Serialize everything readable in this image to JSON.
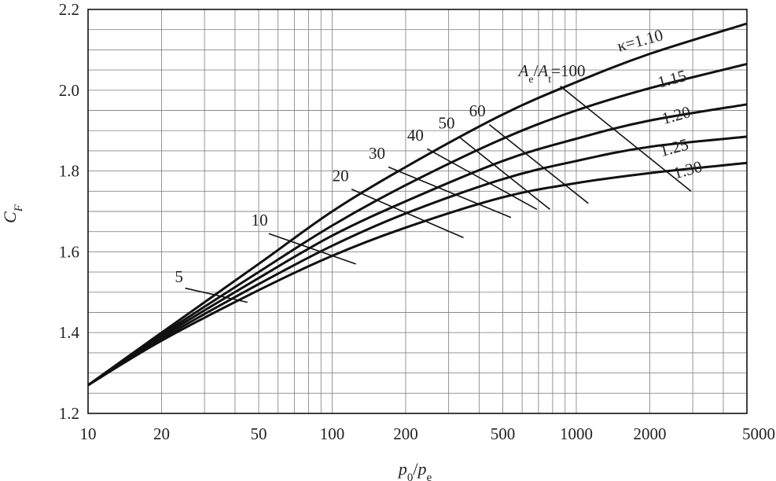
{
  "chart_data": {
    "type": "line",
    "title": "",
    "xscale": "log",
    "yscale": "linear",
    "xlim": [
      10,
      5000
    ],
    "ylim": [
      1.2,
      2.2
    ],
    "grid": true,
    "xlabel": {
      "main": "p",
      "sub1": "0",
      "slash": "/",
      "main2": "p",
      "sub2": "e"
    },
    "ylabel": {
      "main": "C",
      "sub": "F"
    },
    "xticks": [
      10,
      20,
      50,
      100,
      200,
      500,
      1000,
      2000,
      5000
    ],
    "xtick_labels": [
      "10",
      "20",
      "50",
      "100",
      "200",
      "500",
      "1000",
      "2000",
      "5000"
    ],
    "yticks": [
      1.2,
      1.4,
      1.6,
      1.8,
      2.0,
      2.2
    ],
    "ytick_labels": [
      "1.2",
      "1.4",
      "1.6",
      "1.8",
      "2.0",
      "2.2"
    ],
    "series": [
      {
        "name": "κ=1.10",
        "x": [
          10,
          20,
          50,
          100,
          200,
          500,
          1000,
          2000,
          5000
        ],
        "y": [
          1.27,
          1.4,
          1.57,
          1.7,
          1.81,
          1.94,
          2.02,
          2.09,
          2.165
        ]
      },
      {
        "name": "1.15",
        "x": [
          10,
          20,
          50,
          100,
          200,
          500,
          1000,
          2000,
          5000
        ],
        "y": [
          1.27,
          1.395,
          1.55,
          1.665,
          1.765,
          1.88,
          1.95,
          2.005,
          2.065
        ]
      },
      {
        "name": "1.20",
        "x": [
          10,
          20,
          50,
          100,
          200,
          500,
          1000,
          2000,
          5000
        ],
        "y": [
          1.27,
          1.39,
          1.535,
          1.64,
          1.725,
          1.825,
          1.88,
          1.925,
          1.965
        ]
      },
      {
        "name": "1.25",
        "x": [
          10,
          20,
          50,
          100,
          200,
          500,
          1000,
          2000,
          5000
        ],
        "y": [
          1.27,
          1.385,
          1.52,
          1.615,
          1.695,
          1.78,
          1.825,
          1.86,
          1.885
        ]
      },
      {
        "name": "1.30",
        "x": [
          10,
          20,
          50,
          100,
          200,
          500,
          1000,
          2000,
          5000
        ],
        "y": [
          1.27,
          1.38,
          1.505,
          1.59,
          1.66,
          1.735,
          1.77,
          1.795,
          1.82
        ]
      }
    ],
    "area_ratio_lines": [
      {
        "label": "5",
        "x": [
          25,
          45
        ],
        "y": [
          1.51,
          1.475
        ]
      },
      {
        "label": "10",
        "x": [
          55,
          125
        ],
        "y": [
          1.645,
          1.57
        ]
      },
      {
        "label": "20",
        "x": [
          120,
          345
        ],
        "y": [
          1.755,
          1.635
        ]
      },
      {
        "label": "30",
        "x": [
          170,
          540
        ],
        "y": [
          1.81,
          1.685
        ]
      },
      {
        "label": "40",
        "x": [
          245,
          690
        ],
        "y": [
          1.855,
          1.705
        ]
      },
      {
        "label": "50",
        "x": [
          330,
          780
        ],
        "y": [
          1.885,
          1.705
        ]
      },
      {
        "label": "60",
        "x": [
          440,
          1120
        ],
        "y": [
          1.915,
          1.72
        ]
      },
      {
        "label": "A_e/A_t=100",
        "x": [
          860,
          2950
        ],
        "y": [
          2.01,
          1.75
        ]
      }
    ],
    "area_ratio_prefix": {
      "a1": "A",
      "s1": "e",
      "slash": "/",
      "a2": "A",
      "s2": "t",
      "eq": "=100"
    }
  }
}
